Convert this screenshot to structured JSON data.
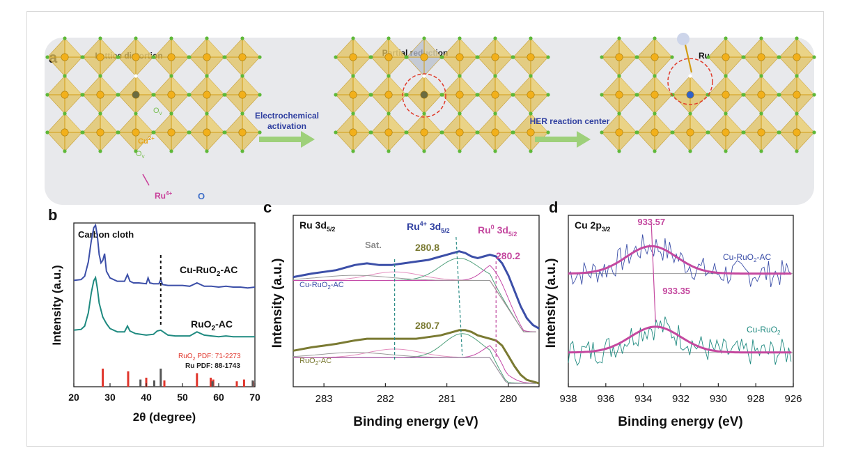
{
  "panel_a": {
    "letter": "a",
    "titles": [
      "Lattice distortion",
      "Partial reduction",
      "Ru"
    ],
    "arrow1_lines": [
      "Electrochemical",
      "activation"
    ],
    "arrow2_label": "HER reaction center",
    "ov_label": "O",
    "ov_sub": "v",
    "cu_label": "Cu",
    "cu_sup": "2+",
    "ru_label": "Ru",
    "ru_sup": "4+",
    "o_label": "O",
    "colors": {
      "octahedron": "#e2c25f",
      "metal": "#f2b01b",
      "oxygen": "#5fb838",
      "vacancy": "#ffffff",
      "arrow": "#9ed07a",
      "circle": "#e03b2b",
      "text_blue": "#2f3fa0",
      "ru_sphere": "#2f62c9"
    }
  },
  "chart_data": [
    {
      "panel": "b",
      "type": "line",
      "note_label": "Carbon cloth",
      "xlabel": "2θ (degree)",
      "ylabel": "Intensity (a.u.)",
      "xlim": [
        20,
        70
      ],
      "xticks": [
        20,
        30,
        40,
        50,
        60,
        70
      ],
      "dashed_x": 44,
      "series": [
        {
          "name": "Cu-RuO2-AC",
          "label_main": "Cu-RuO",
          "label_sub": "2",
          "label_tail": "-AC",
          "color": "#3c4fa8",
          "x": [
            20,
            22,
            23,
            24,
            24.8,
            25.5,
            26,
            26.5,
            27,
            27.5,
            28,
            28.5,
            29,
            30,
            32,
            34,
            34.8,
            35.5,
            36.5,
            38,
            40,
            40.5,
            41,
            42,
            43.5,
            44,
            44.5,
            46,
            48,
            50,
            52,
            54,
            56,
            58,
            60,
            62,
            64,
            66,
            68,
            70
          ],
          "y": [
            0.13,
            0.14,
            0.18,
            0.35,
            0.6,
            0.76,
            0.79,
            0.66,
            0.44,
            0.34,
            0.37,
            0.45,
            0.24,
            0.16,
            0.12,
            0.12,
            0.2,
            0.12,
            0.1,
            0.1,
            0.09,
            0.16,
            0.1,
            0.09,
            0.09,
            0.14,
            0.08,
            0.07,
            0.07,
            0.07,
            0.06,
            0.1,
            0.06,
            0.06,
            0.05,
            0.06,
            0.05,
            0.05,
            0.04,
            0.05
          ]
        },
        {
          "name": "RuO2-AC",
          "label_main": "RuO",
          "label_sub": "2",
          "label_tail": "-AC",
          "color": "#1f8a80",
          "x": [
            20,
            22,
            23,
            24,
            24.8,
            25.5,
            26,
            26.5,
            27,
            28,
            29,
            30,
            32,
            34,
            34.8,
            35.5,
            37,
            40,
            42,
            43,
            44,
            45,
            46,
            48,
            50,
            52,
            54,
            56,
            58,
            60,
            62,
            64,
            66,
            68,
            70
          ],
          "y": [
            0.12,
            0.13,
            0.17,
            0.33,
            0.57,
            0.72,
            0.76,
            0.63,
            0.45,
            0.28,
            0.2,
            0.14,
            0.1,
            0.1,
            0.17,
            0.11,
            0.08,
            0.06,
            0.07,
            0.11,
            0.12,
            0.09,
            0.06,
            0.05,
            0.05,
            0.05,
            0.1,
            0.06,
            0.05,
            0.04,
            0.05,
            0.04,
            0.04,
            0.04,
            0.04
          ]
        }
      ],
      "reference_labels": [
        {
          "main": "RuO",
          "sub": "2",
          "tail": " PDF: 71-2273",
          "color": "#e0352b"
        },
        {
          "main": "Ru",
          "sub": "",
          "tail": " PDF:  88-1743",
          "color": "#222222"
        }
      ],
      "reference_lines": {
        "RuO2": {
          "color": "#e0352b",
          "x": [
            28,
            35,
            40,
            45,
            54,
            57.8,
            58.5,
            65,
            67,
            69.5
          ],
          "h": [
            1.0,
            0.85,
            0.5,
            0.35,
            0.75,
            0.5,
            0.4,
            0.3,
            0.4,
            0.3
          ]
        },
        "Ru": {
          "color": "#555555",
          "x": [
            38.4,
            42.2,
            44,
            58.3,
            69.4
          ],
          "h": [
            0.4,
            0.35,
            1.0,
            0.3,
            0.35
          ]
        }
      }
    },
    {
      "panel": "c",
      "type": "line",
      "title_main": "Ru 3d",
      "title_sub": "5/2",
      "xlabel": "Binding energy (eV)",
      "ylabel": "Intensity (a.u.)",
      "xlim": [
        283.5,
        279.5
      ],
      "xticks": [
        283,
        282,
        281,
        280
      ],
      "annotations": {
        "sat": "Sat.",
        "ru4_main": "Ru",
        "ru4_sup": "4+",
        "ru4_tail": " 3d",
        "ru4_sub": "5/2",
        "ru0_main": "Ru",
        "ru0_sup": "0",
        "ru0_tail": " 3d",
        "ru0_sub": "5/2",
        "peak1": "280.8",
        "peak2": "280.2",
        "peak3": "280.7"
      },
      "dashed_lines": [
        {
          "x": 281.85,
          "color": "#2a8c86"
        },
        {
          "x": 280.2,
          "color": "#c0479f"
        },
        {
          "from_x": 280.85,
          "to_x": 280.75,
          "color": "#2a8c86"
        }
      ],
      "series": [
        {
          "name": "Cu-RuO2-AC",
          "label_main": "Cu-RuO",
          "label_sub": "2",
          "label_tail": "-AC",
          "color": "#3c4fa8",
          "x": [
            283.5,
            283.2,
            283.0,
            282.8,
            282.5,
            282.3,
            282.1,
            281.9,
            281.7,
            281.5,
            281.3,
            281.1,
            280.9,
            280.8,
            280.7,
            280.6,
            280.5,
            280.4,
            280.3,
            280.2,
            280.1,
            280.0,
            279.9,
            279.8,
            279.7,
            279.6,
            279.5
          ],
          "y": [
            0.64,
            0.66,
            0.67,
            0.68,
            0.71,
            0.72,
            0.71,
            0.71,
            0.72,
            0.73,
            0.74,
            0.76,
            0.78,
            0.79,
            0.78,
            0.76,
            0.75,
            0.76,
            0.77,
            0.76,
            0.72,
            0.65,
            0.56,
            0.47,
            0.4,
            0.36,
            0.34
          ]
        },
        {
          "name": "RuO2-AC",
          "label_main": "RuO",
          "label_sub": "2",
          "label_tail": "-AC",
          "color": "#7a7a32",
          "x": [
            283.5,
            283.2,
            283.0,
            282.8,
            282.5,
            282.3,
            282.1,
            281.9,
            281.7,
            281.5,
            281.3,
            281.1,
            280.9,
            280.8,
            280.7,
            280.6,
            280.5,
            280.4,
            280.3,
            280.2,
            280.1,
            280.0,
            279.9,
            279.8,
            279.7,
            279.6,
            279.5
          ],
          "y": [
            0.21,
            0.23,
            0.24,
            0.25,
            0.27,
            0.28,
            0.28,
            0.28,
            0.28,
            0.28,
            0.29,
            0.3,
            0.32,
            0.33,
            0.33,
            0.32,
            0.3,
            0.29,
            0.28,
            0.27,
            0.24,
            0.18,
            0.12,
            0.07,
            0.04,
            0.03,
            0.02
          ]
        }
      ]
    },
    {
      "panel": "d",
      "type": "line",
      "title_main": "Cu 2p",
      "title_sub": "3/2",
      "xlabel": "Binding energy (eV)",
      "ylabel": "Intensity (a.u.)",
      "xlim": [
        938,
        926
      ],
      "xticks": [
        938,
        936,
        934,
        932,
        930,
        928,
        926
      ],
      "peak_labels": [
        "933.57",
        "933.35"
      ],
      "fit_color": "#c4489f",
      "series": [
        {
          "name": "Cu-RuO2-AC",
          "label_main": "Cu-RuO",
          "label_sub": "2",
          "label_tail": "-AC",
          "color": "#3c4fa8",
          "center": 933.57,
          "base": 0.66,
          "amp": 0.16,
          "width": 1.9
        },
        {
          "name": "Cu-RuO2",
          "label_main": "Cu-RuO",
          "label_sub": "2",
          "label_tail": "",
          "color": "#1f8a80",
          "center": 933.35,
          "base": 0.2,
          "amp": 0.15,
          "width": 1.9
        }
      ]
    }
  ]
}
